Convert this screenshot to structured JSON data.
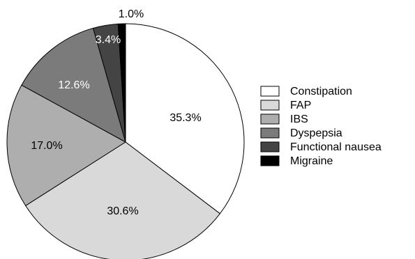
{
  "chart_data": {
    "type": "pie",
    "title": "",
    "start_angle_deg": 0,
    "direction": "clockwise",
    "legend_position": "right",
    "slices": [
      {
        "label": "Constipation",
        "value": 35.3,
        "value_label": "35.3%",
        "color": "#ffffff",
        "label_color": "#000000"
      },
      {
        "label": "FAP",
        "value": 30.6,
        "value_label": "30.6%",
        "color": "#d9d9d9",
        "label_color": "#000000"
      },
      {
        "label": "IBS",
        "value": 17.0,
        "value_label": "17.0%",
        "color": "#aeaeae",
        "label_color": "#000000"
      },
      {
        "label": "Dyspepsia",
        "value": 12.6,
        "value_label": "12.6%",
        "color": "#7b7b7b",
        "label_color": "#ffffff"
      },
      {
        "label": "Functional nausea",
        "value": 3.4,
        "value_label": "3.4%",
        "color": "#444444",
        "label_color": "#ffffff"
      },
      {
        "label": "Migraine",
        "value": 1.0,
        "value_label": "1.0%",
        "color": "#000000",
        "label_color": "#000000"
      }
    ]
  }
}
